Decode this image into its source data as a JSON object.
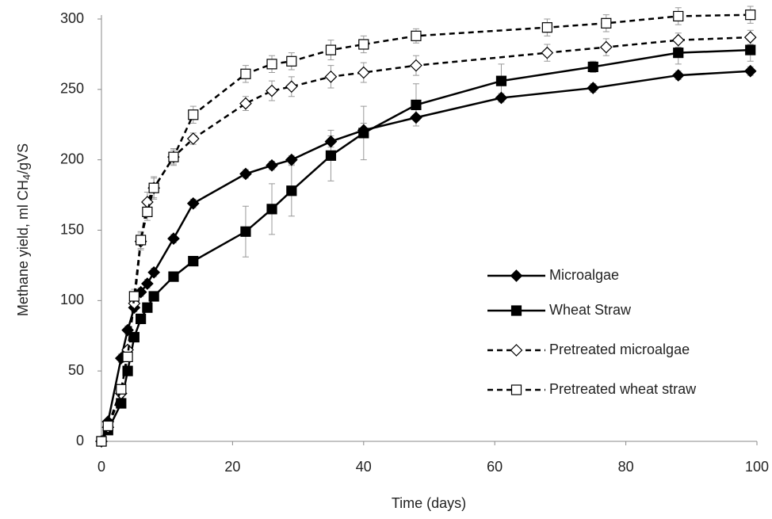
{
  "chart_data": {
    "type": "line",
    "xlabel": "Time (days)",
    "ylabel": [
      "Methane yield, ml CH",
      "4",
      "/gVS"
    ],
    "xlim": [
      0,
      100
    ],
    "xticks": [
      0,
      20,
      40,
      60,
      80,
      100
    ],
    "ylim": [
      0,
      300
    ],
    "yticks": [
      0,
      50,
      100,
      150,
      200,
      250,
      300
    ],
    "grid": false,
    "legend": "right",
    "series": [
      {
        "name": "Microalgae",
        "color": "#000000",
        "marker": "diamond",
        "filled": true,
        "dashed": false,
        "x": [
          0,
          1,
          3,
          4,
          5,
          6,
          7,
          8,
          11,
          14,
          22,
          26,
          29,
          35,
          40,
          48,
          61,
          75,
          88,
          99
        ],
        "values": [
          0,
          14,
          59,
          79,
          95,
          106,
          112,
          120,
          144,
          169,
          190,
          196,
          200,
          213,
          221,
          230,
          244,
          251,
          260,
          263
        ],
        "errors": [
          0,
          2,
          3,
          3,
          3,
          3,
          3,
          3,
          3,
          3,
          3,
          3,
          3,
          4,
          5,
          6,
          3,
          3,
          3,
          3
        ]
      },
      {
        "name": "Wheat Straw",
        "color": "#000000",
        "marker": "square",
        "filled": true,
        "dashed": false,
        "x": [
          0,
          1,
          3,
          4,
          5,
          6,
          7,
          8,
          11,
          14,
          22,
          26,
          29,
          35,
          40,
          48,
          61,
          75,
          88,
          99
        ],
        "values": [
          0,
          8,
          27,
          50,
          74,
          87,
          95,
          103,
          117,
          128,
          149,
          165,
          178,
          203,
          219,
          239,
          256,
          266,
          276,
          278
        ],
        "errors": [
          0,
          2,
          3,
          3,
          3,
          3,
          3,
          3,
          3,
          3,
          18,
          18,
          18,
          18,
          19,
          15,
          12,
          4,
          8,
          8
        ]
      },
      {
        "name": "Pretreated microalgae",
        "color": "#000000",
        "marker": "diamond",
        "filled": false,
        "dashed": true,
        "x": [
          0,
          1,
          3,
          4,
          5,
          6,
          7,
          8,
          11,
          14,
          22,
          26,
          29,
          35,
          40,
          48,
          68,
          77,
          88,
          99
        ],
        "values": [
          0,
          10,
          34,
          65,
          98,
          142,
          170,
          180,
          202,
          215,
          240,
          249,
          252,
          259,
          262,
          267,
          276,
          280,
          285,
          287
        ],
        "errors": [
          0,
          2,
          3,
          3,
          5,
          6,
          7,
          7,
          5,
          4,
          5,
          7,
          7,
          8,
          7,
          7,
          6,
          6,
          5,
          5
        ]
      },
      {
        "name": "Pretreated wheat straw",
        "color": "#000000",
        "marker": "square",
        "filled": false,
        "dashed": true,
        "x": [
          0,
          1,
          3,
          4,
          5,
          6,
          7,
          8,
          11,
          14,
          22,
          26,
          29,
          35,
          40,
          48,
          68,
          77,
          88,
          99
        ],
        "values": [
          0,
          11,
          37,
          60,
          103,
          143,
          163,
          180,
          202,
          232,
          261,
          268,
          270,
          278,
          282,
          288,
          294,
          297,
          302,
          303
        ],
        "errors": [
          0,
          2,
          3,
          3,
          5,
          6,
          6,
          8,
          6,
          6,
          6,
          6,
          6,
          7,
          6,
          5,
          6,
          6,
          6,
          6
        ]
      }
    ]
  }
}
